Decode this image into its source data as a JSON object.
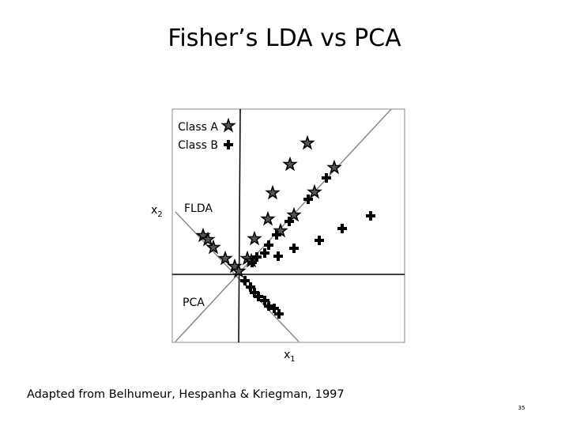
{
  "title": "Fisher’s LDA vs PCA",
  "legend": [
    {
      "label": "Class A"
    },
    {
      "label": "Class B"
    }
  ],
  "axis_labels": {
    "x": {
      "text": "x",
      "subscript": "1"
    },
    "y": {
      "text": "x",
      "subscript": "2"
    }
  },
  "line_labels": {
    "flda": "FLDA",
    "pca": "PCA"
  },
  "citation": "Adapted from Belhumeur, Hespanha & Kriegman, 1997",
  "page_number": "35"
}
